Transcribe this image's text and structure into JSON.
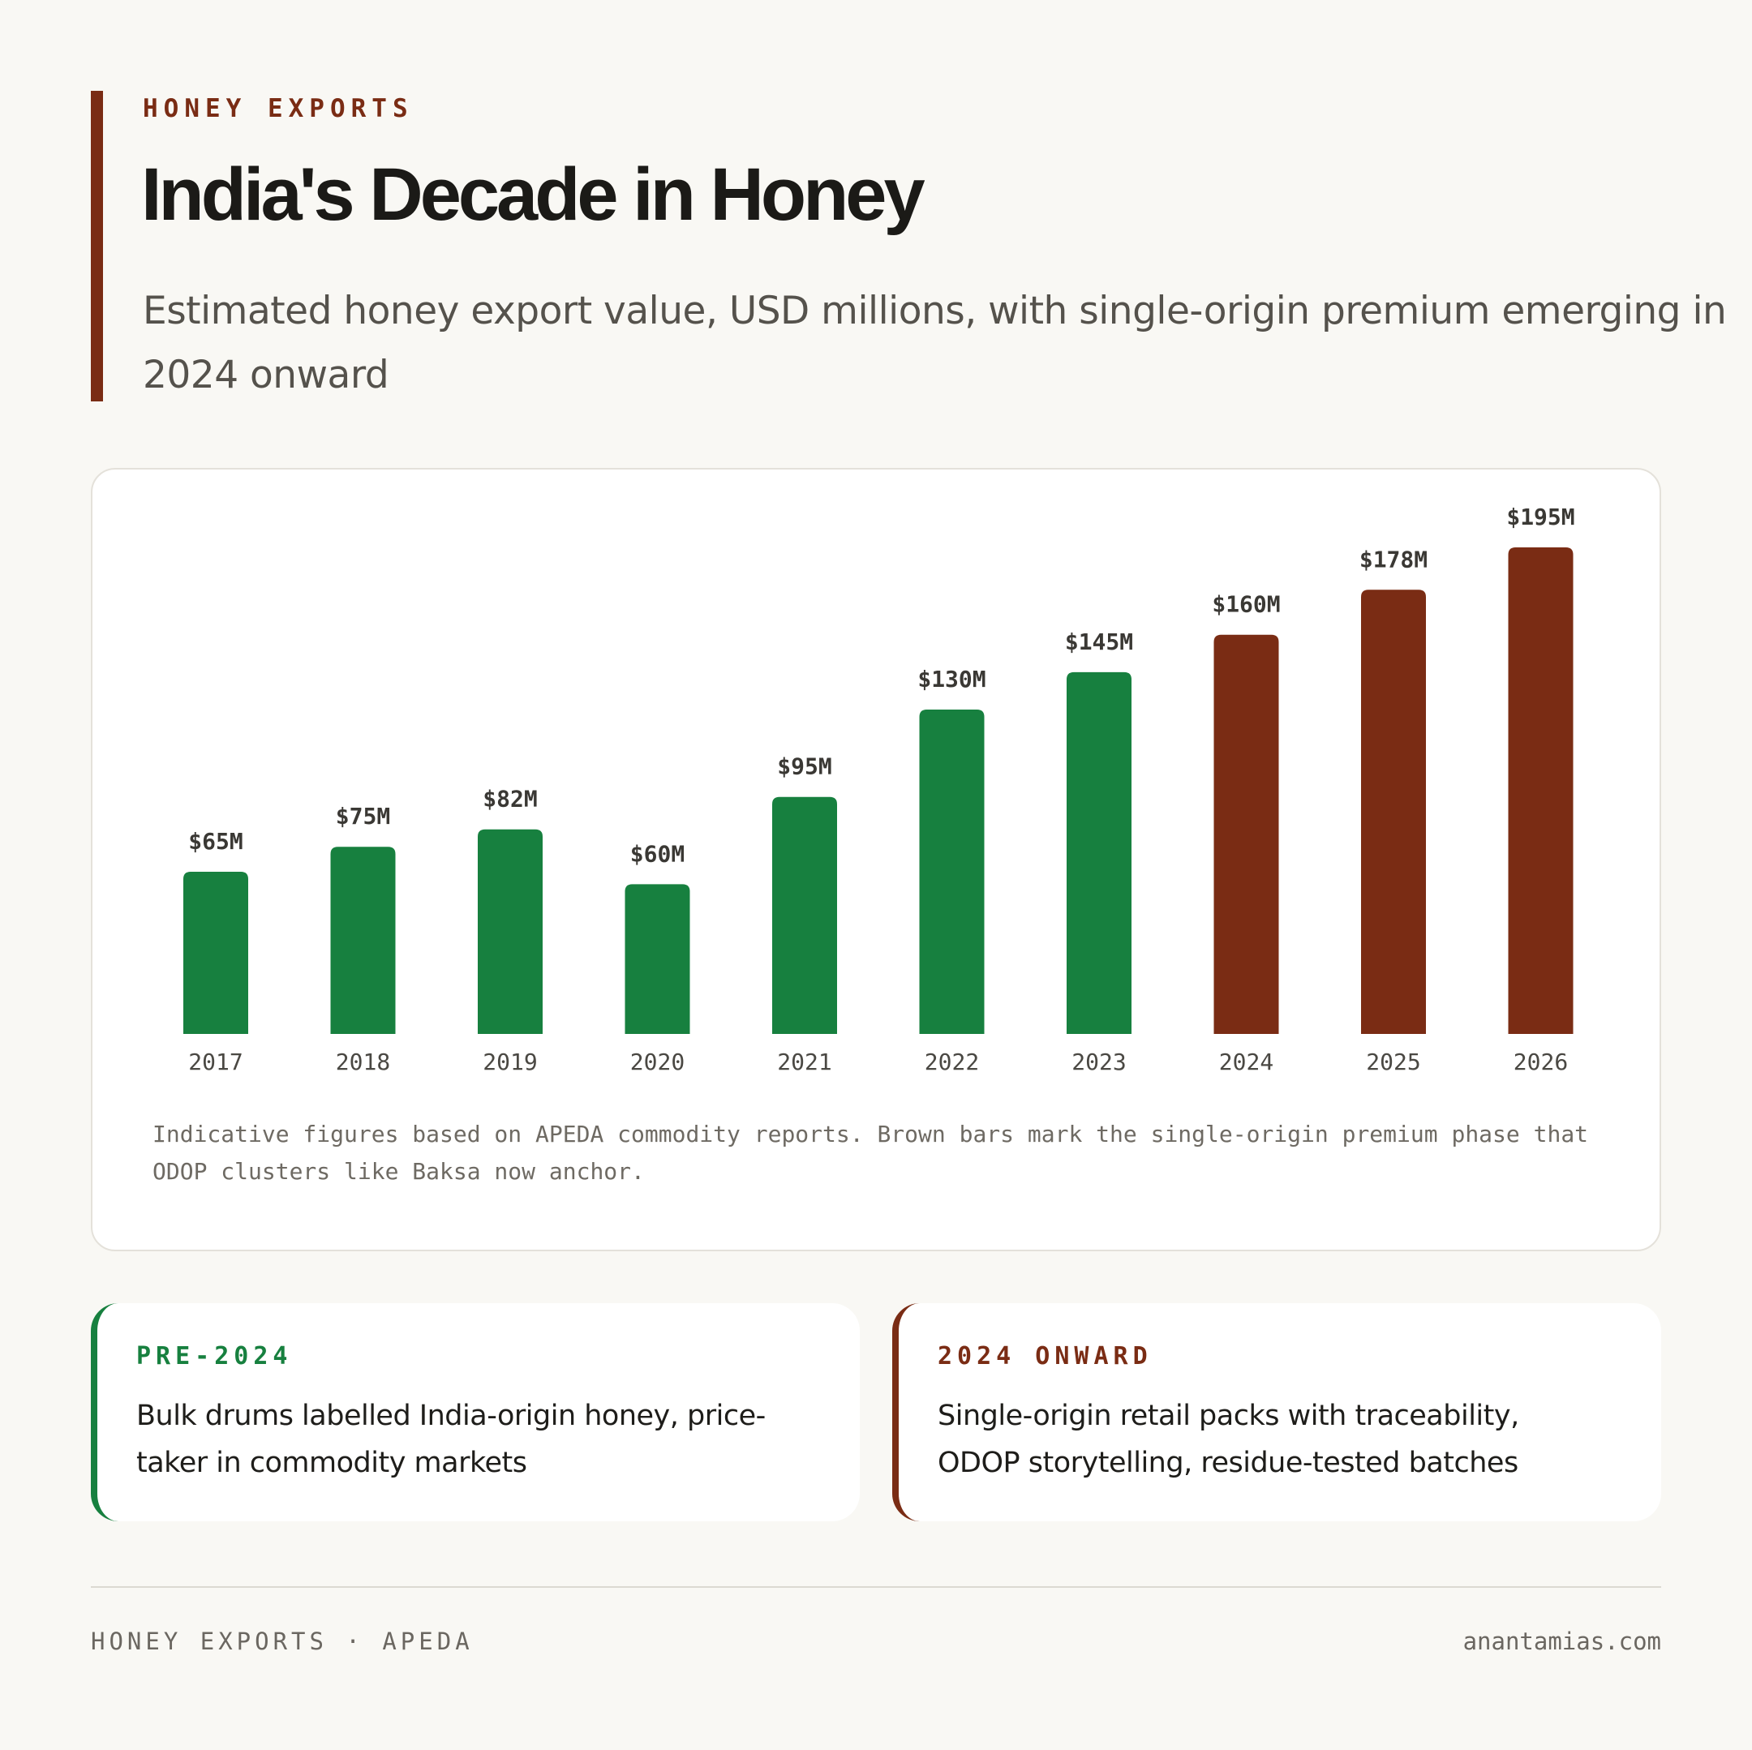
{
  "header": {
    "eyebrow": "HONEY EXPORTS",
    "title": "India's Decade in Honey",
    "subtitle": "Estimated honey export value, USD millions, with single-origin premium emerging in 2024 onward"
  },
  "chart_data": {
    "type": "bar",
    "title": "",
    "xlabel": "",
    "ylabel": "",
    "categories": [
      "2017",
      "2018",
      "2019",
      "2020",
      "2021",
      "2022",
      "2023",
      "2024",
      "2025",
      "2026"
    ],
    "values": [
      65,
      75,
      82,
      60,
      95,
      130,
      145,
      160,
      178,
      195
    ],
    "value_labels": [
      "$65M",
      "$75M",
      "$82M",
      "$60M",
      "$95M",
      "$130M",
      "$145M",
      "$160M",
      "$178M",
      "$195M"
    ],
    "unit": "USD millions",
    "ylim": [
      0,
      195
    ],
    "grid": false,
    "colors": {
      "pre_2024": "#17803f",
      "from_2024": "#7a2c14"
    },
    "highlight_from": "2024"
  },
  "chart_note": "Indicative figures based on APEDA commodity reports. Brown bars mark the single-origin premium phase that ODOP clusters like Baksa now anchor.",
  "phases": [
    {
      "label": "PRE-2024",
      "text": "Bulk drums labelled India-origin honey, price-taker in commodity markets",
      "color": "#17803f"
    },
    {
      "label": "2024 ONWARD",
      "text": "Single-origin retail packs with traceability, ODOP storytelling, residue-tested batches",
      "color": "#7a2c14"
    }
  ],
  "footer": {
    "left": "HONEY EXPORTS · APEDA",
    "right": "anantamias.com"
  }
}
